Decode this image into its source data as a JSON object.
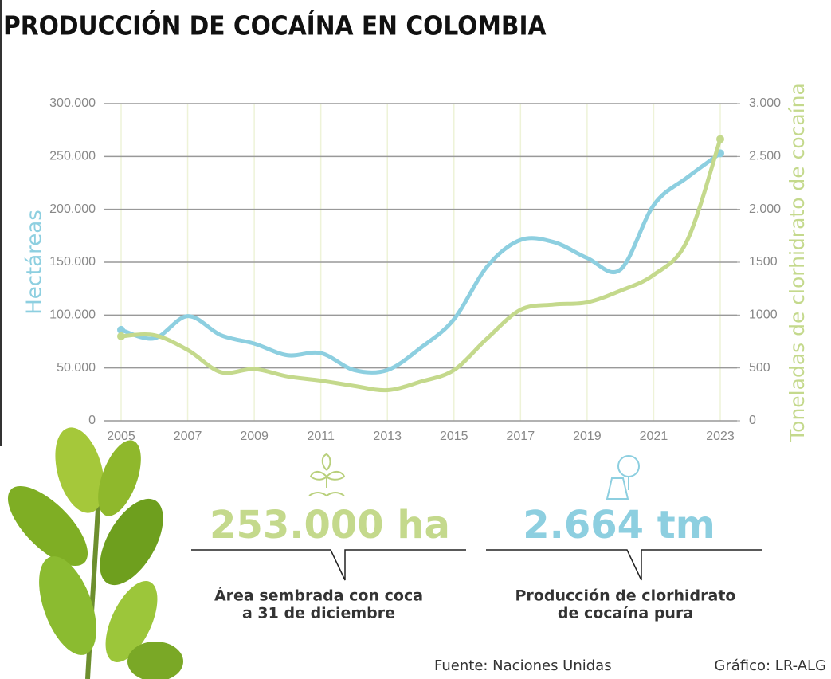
{
  "chart_data": {
    "type": "line",
    "title": "PRODUCCIÓN DE COCAÍNA EN COLOMBIA",
    "y_label": "Hectáreas",
    "y2_label": "Toneladas de clorhidrato de cocaína",
    "x": [
      2005,
      2006,
      2007,
      2008,
      2009,
      2010,
      2011,
      2012,
      2013,
      2014,
      2015,
      2016,
      2017,
      2018,
      2019,
      2020,
      2021,
      2022,
      2023
    ],
    "xlim": [
      2005,
      2023
    ],
    "xticks": [
      2005,
      2007,
      2009,
      2011,
      2013,
      2015,
      2017,
      2019,
      2021,
      2023
    ],
    "ylim": [
      0,
      300000
    ],
    "yticks": [
      0,
      {
        "value": 50000,
        "label": "50.000"
      },
      {
        "value": 100000,
        "label": "100.000"
      },
      {
        "value": 150000,
        "label": "150.000"
      },
      {
        "value": 200000,
        "label": "200.000"
      },
      {
        "value": 250000,
        "label": "250.000"
      },
      {
        "value": 300000,
        "label": "300.000"
      }
    ],
    "y2lim": [
      0,
      3000
    ],
    "y2ticks": [
      0,
      500,
      1000,
      1500,
      {
        "value": 2000,
        "label": "2.000"
      },
      {
        "value": 2500,
        "label": "2.500"
      },
      {
        "value": 3000,
        "label": "3.000"
      }
    ],
    "grid": true,
    "series": [
      {
        "color": "#8dcfe0",
        "values": [
          86000,
          78000,
          99000,
          81000,
          73000,
          62000,
          64000,
          48000,
          48000,
          69000,
          96000,
          146000,
          171000,
          169000,
          154000,
          143000,
          204000,
          230000,
          253000
        ]
      },
      {
        "color": "#c4d98c",
        "axis": "y2",
        "values": [
          800,
          810,
          670,
          460,
          490,
          420,
          380,
          330,
          290,
          370,
          480,
          780,
          1050,
          1100,
          1120,
          1230,
          1380,
          1700,
          2664
        ]
      }
    ]
  },
  "stats": [
    {
      "headline": "253.000 ha",
      "caption": [
        "Área sembrada con coca",
        "a  31 de diciembre"
      ]
    },
    {
      "headline": "2.664 tm",
      "caption": [
        "Producción de clorhidrato",
        "de cocaína pura"
      ]
    }
  ],
  "source": "Fuente: Naciones Unidas",
  "credit": "Gráfico: LR-ALG"
}
